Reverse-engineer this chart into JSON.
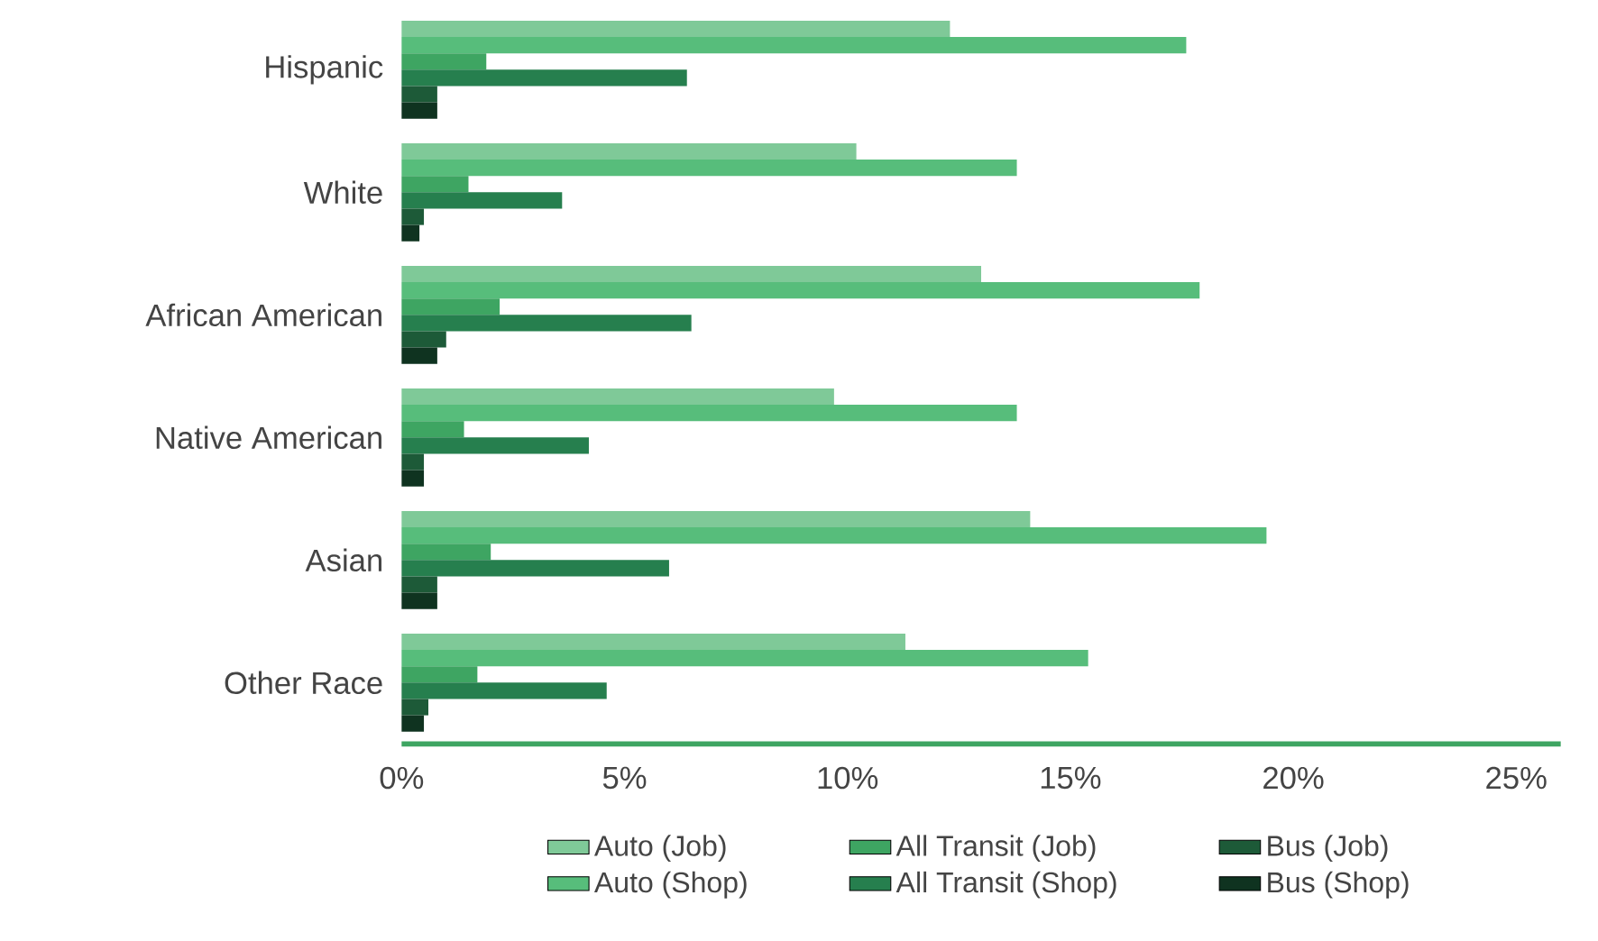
{
  "chart_data": {
    "type": "bar",
    "orientation": "horizontal",
    "categories": [
      "Hispanic",
      "White",
      "African American",
      "Native American",
      "Asian",
      "Other Race"
    ],
    "series": [
      {
        "name": "Auto (Job)",
        "color": "#7fc998",
        "values": [
          12.3,
          10.2,
          13.0,
          9.7,
          14.1,
          11.3
        ]
      },
      {
        "name": "Auto (Shop)",
        "color": "#57bd7b",
        "values": [
          17.6,
          13.8,
          17.9,
          13.8,
          19.4,
          15.4
        ]
      },
      {
        "name": "All Transit (Job)",
        "color": "#3ea562",
        "values": [
          1.9,
          1.5,
          2.2,
          1.4,
          2.0,
          1.7
        ]
      },
      {
        "name": "All Transit (Shop)",
        "color": "#267f4e",
        "values": [
          6.4,
          3.6,
          6.5,
          4.2,
          6.0,
          4.6
        ]
      },
      {
        "name": "Bus (Job)",
        "color": "#1d5a38",
        "values": [
          0.8,
          0.5,
          1.0,
          0.5,
          0.8,
          0.6
        ]
      },
      {
        "name": "Bus (Shop)",
        "color": "#0f3320",
        "values": [
          0.8,
          0.4,
          0.8,
          0.5,
          0.8,
          0.5
        ]
      }
    ],
    "xlim": [
      0,
      26
    ],
    "xticks": [
      {
        "value": 0,
        "label": "0%"
      },
      {
        "value": 5,
        "label": "5%"
      },
      {
        "value": 10,
        "label": "10%"
      },
      {
        "value": 15,
        "label": "15%"
      },
      {
        "value": 20,
        "label": "20%"
      },
      {
        "value": 25,
        "label": "25%"
      }
    ],
    "grid": false,
    "legend": "bottom"
  }
}
